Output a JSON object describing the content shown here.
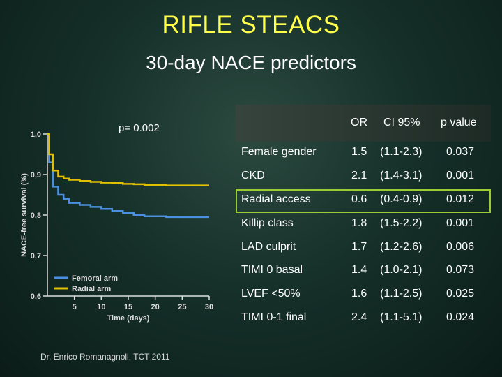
{
  "title": "RIFLE  STEACS",
  "subtitle": "30-day NACE predictors",
  "p_label": "p= 0.002",
  "credit": "Dr. Enrico Romanagnoli, TCT 2011",
  "colors": {
    "background": "#16302a",
    "title": "#ffff4a",
    "femoral": "#4a90e2",
    "radial": "#e0c000",
    "highlight": "#9acd32"
  },
  "chart_data": {
    "type": "line",
    "title": "",
    "xlabel": "Time (days)",
    "ylabel": "NACE-free survival (%)",
    "xlim": [
      0,
      30
    ],
    "ylim": [
      0.6,
      1.0
    ],
    "x_ticks": [
      5,
      10,
      15,
      20,
      25,
      30
    ],
    "y_ticks": [
      0.6,
      0.7,
      0.8,
      0.9,
      1.0
    ],
    "y_tick_labels": [
      "0,6",
      "0,7",
      "0,8",
      "0,9",
      "1,0"
    ],
    "legend": [
      "Femoral arm",
      "Radial arm"
    ],
    "legend_position": "bottom-left",
    "series": [
      {
        "name": "Femoral arm",
        "x": [
          0,
          0.3,
          1,
          2,
          3,
          4,
          6,
          8,
          10,
          12,
          14,
          16,
          18,
          22,
          25,
          30
        ],
        "y": [
          1.0,
          0.93,
          0.87,
          0.85,
          0.84,
          0.83,
          0.825,
          0.82,
          0.815,
          0.81,
          0.805,
          0.8,
          0.797,
          0.795,
          0.795,
          0.795
        ]
      },
      {
        "name": "Radial arm",
        "x": [
          0,
          0.3,
          1,
          2,
          3,
          4,
          6,
          8,
          10,
          12,
          14,
          16,
          18,
          22,
          25,
          30
        ],
        "y": [
          1.0,
          0.95,
          0.91,
          0.895,
          0.89,
          0.887,
          0.884,
          0.882,
          0.88,
          0.879,
          0.877,
          0.876,
          0.874,
          0.873,
          0.873,
          0.873
        ]
      }
    ]
  },
  "table": {
    "headers": {
      "or": "OR",
      "ci": "CI 95%",
      "p": "p value"
    },
    "rows": [
      {
        "name": "Female gender",
        "or": "1.5",
        "ci": "(1.1-2.3)",
        "p": "0.037"
      },
      {
        "name": "CKD",
        "or": "2.1",
        "ci": "(1.4-3.1)",
        "p": "0.001"
      },
      {
        "name": "Radial access",
        "or": "0.6",
        "ci": "(0.4-0.9)",
        "p": "0.012"
      },
      {
        "name": "Killip class",
        "or": "1.8",
        "ci": "(1.5-2.2)",
        "p": "0.001"
      },
      {
        "name": "LAD culprit",
        "or": "1.7",
        "ci": "(1.2-2.6)",
        "p": "0.006"
      },
      {
        "name": "TIMI 0 basal",
        "or": "1.4",
        "ci": "(1.0-2.1)",
        "p": "0.073"
      },
      {
        "name": "LVEF <50%",
        "or": "1.6",
        "ci": "(1.1-2.5)",
        "p": "0.025"
      },
      {
        "name": "TIMI 0-1 final",
        "or": "2.4",
        "ci": "(1.1-5.1)",
        "p": "0.024"
      }
    ]
  }
}
